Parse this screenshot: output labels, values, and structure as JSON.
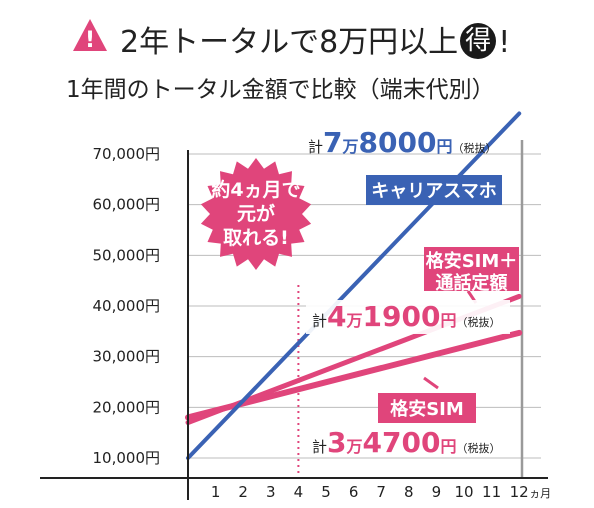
{
  "headline": {
    "warn_symbol": "!",
    "part1": "2年トータルで8万円以上",
    "circled": "得",
    "part2": "!"
  },
  "subtitle": "1年間のトータル金額で比較（端末代別）",
  "colors": {
    "carrier": "#3a62b4",
    "cheap_call": "#e0457b",
    "cheap": "#e0457b",
    "axis": "#222222",
    "grid": "#bdbdbd",
    "warn": "#e0457b",
    "burst": "#e0457b",
    "marker": "#e0457b",
    "right_edge": "#9a9a9a"
  },
  "burst": {
    "lines": [
      "約4ヵ月で",
      "元が",
      "取れる!"
    ]
  },
  "labels": {
    "carrier": "キャリアスマホ",
    "cheap_call": [
      "格安SIM＋",
      "通話定額"
    ],
    "cheap": "格安SIM"
  },
  "totals": {
    "carrier": {
      "prefix": "計",
      "n1": "7",
      "m1": "万",
      "n2": "8000",
      "m2": "円",
      "tax": "（税抜）"
    },
    "cheap_call": {
      "prefix": "計",
      "n1": "4",
      "m1": "万",
      "n2": "1900",
      "m2": "円",
      "tax": "（税抜）"
    },
    "cheap": {
      "prefix": "計",
      "n1": "3",
      "m1": "万",
      "n2": "4700",
      "m2": "円",
      "tax": "（税抜）"
    }
  },
  "chart_data": {
    "type": "line",
    "x": [
      0,
      12
    ],
    "x_tick_labels": [
      "1",
      "2",
      "3",
      "4",
      "5",
      "6",
      "7",
      "8",
      "9",
      "10",
      "11",
      "12"
    ],
    "x_unit": "ヵ月",
    "y_tick_labels": [
      "10,000円",
      "20,000円",
      "30,000円",
      "40,000円",
      "50,000円",
      "60,000円",
      "70,000円"
    ],
    "y_ticks": [
      10000,
      20000,
      30000,
      40000,
      50000,
      60000,
      70000
    ],
    "ylim": [
      5000,
      76000
    ],
    "grid": true,
    "marker_x": 4,
    "series": [
      {
        "name": "キャリアスマホ",
        "key": "carrier",
        "values": [
          10000,
          78000
        ]
      },
      {
        "name": "格安SIM＋通話定額",
        "key": "cheap_call",
        "values": [
          17000,
          41900
        ]
      },
      {
        "name": "格安SIM",
        "key": "cheap",
        "values": [
          18000,
          34700
        ]
      }
    ]
  }
}
